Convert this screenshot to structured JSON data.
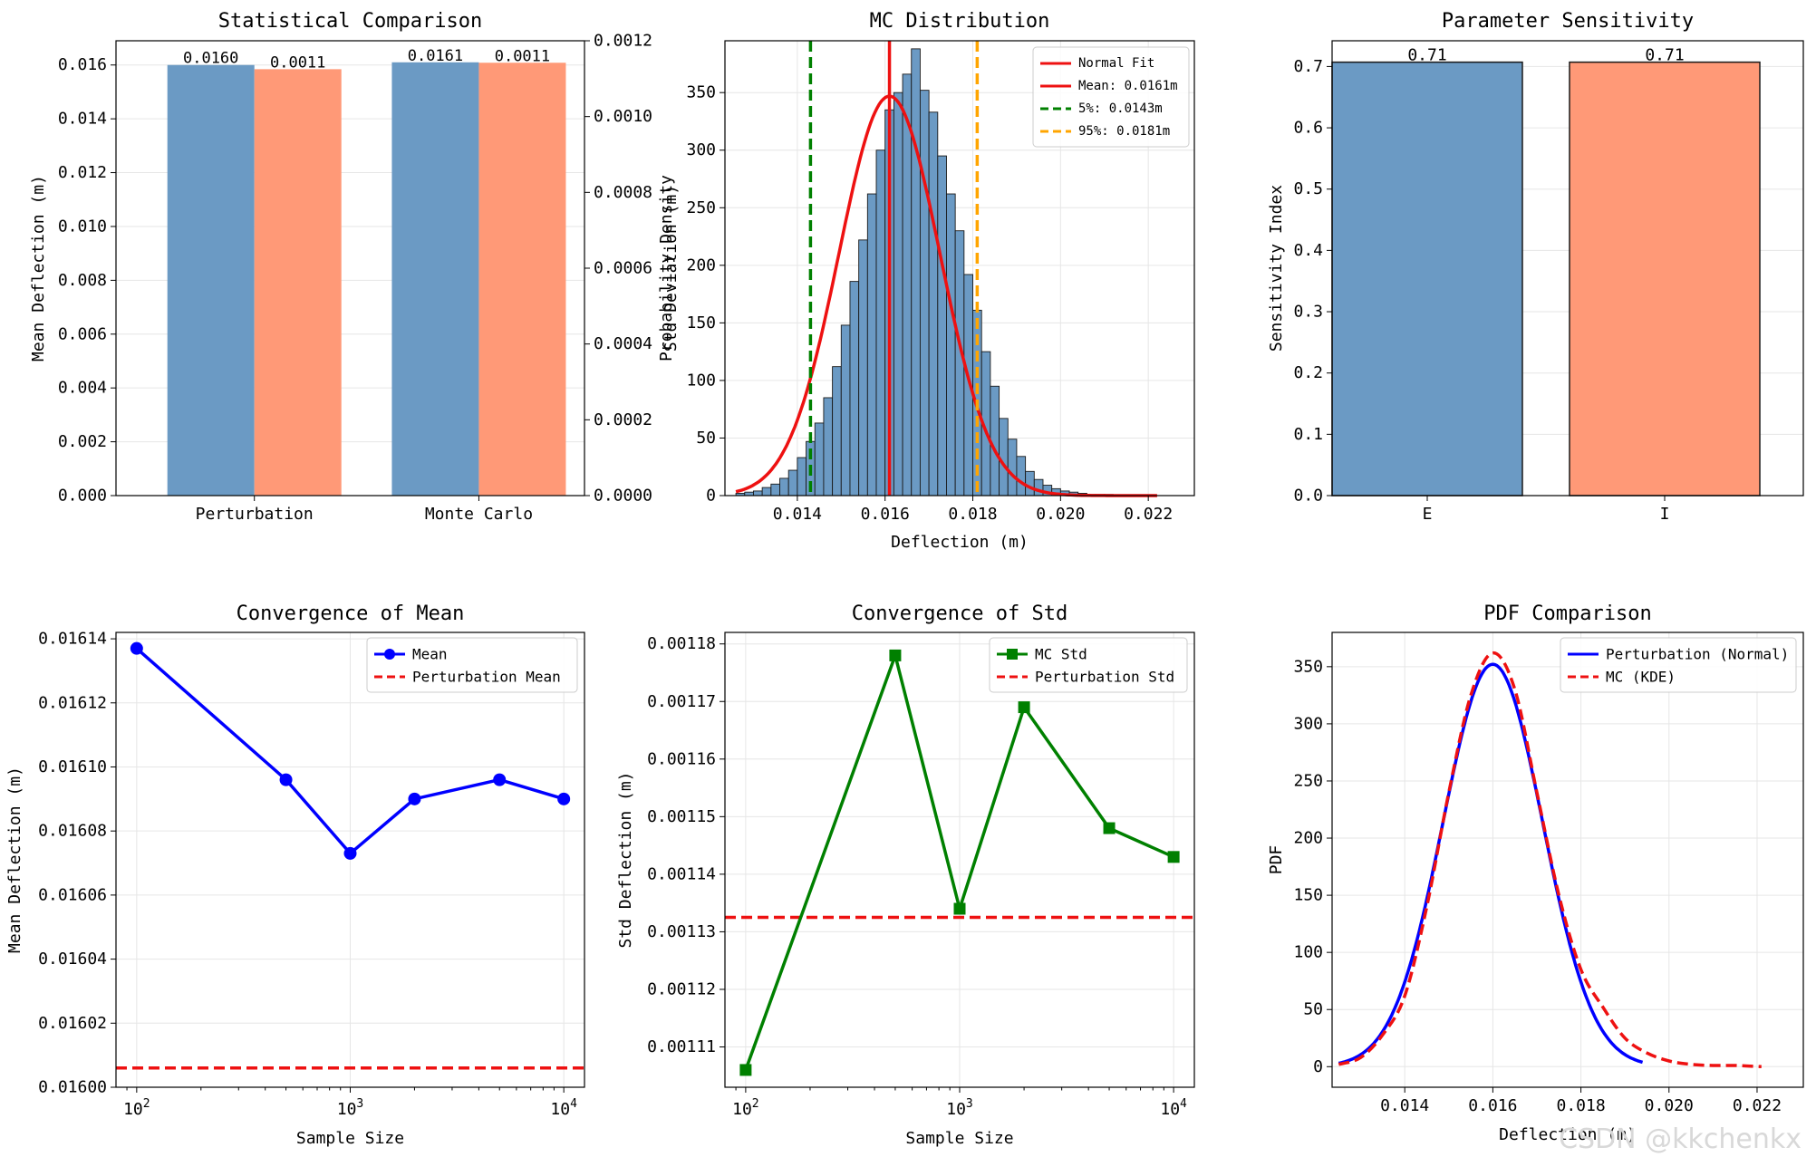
{
  "watermark": "CSDN @kkchenkx",
  "chart_data": [
    {
      "type": "bar",
      "title": "Statistical Comparison",
      "categories": [
        "Perturbation",
        "Monte Carlo"
      ],
      "ylabel": "Mean Deflection (m)",
      "ylabel_color": "#4682B4",
      "ylim": [
        0,
        0.0169
      ],
      "yticks": [
        "0.000",
        "0.002",
        "0.004",
        "0.006",
        "0.008",
        "0.010",
        "0.012",
        "0.014",
        "0.016"
      ],
      "y2label": "Std Deviation (m)",
      "y2label_color": "#FF7F50",
      "y2lim": [
        0,
        0.0012
      ],
      "y2ticks": [
        "0.0000",
        "0.0002",
        "0.0004",
        "0.0006",
        "0.0008",
        "0.0010",
        "0.0012"
      ],
      "series": [
        {
          "axis": "left",
          "color": "#6B9AC4",
          "values": [
            0.016,
            0.0161
          ],
          "labels": [
            "0.0160",
            "0.0161"
          ]
        },
        {
          "axis": "right",
          "color": "#FF9977",
          "values": [
            0.001125,
            0.001142
          ],
          "labels": [
            "0.0011",
            "0.0011"
          ]
        }
      ]
    },
    {
      "type": "bar",
      "subtype": "histogram",
      "title": "MC Distribution",
      "xlabel": "Deflection (m)",
      "ylabel": "Probability Density",
      "xlim": [
        0.01235,
        0.02305
      ],
      "ylim": [
        0,
        395
      ],
      "xticks": [
        "0.014",
        "0.016",
        "0.018",
        "0.020",
        "0.022"
      ],
      "yticks": [
        "0",
        "50",
        "100",
        "150",
        "200",
        "250",
        "300",
        "350"
      ],
      "bar_color": "#6B9AC4",
      "bin_start": 0.0126,
      "bin_width": 0.0002,
      "values": [
        2,
        3,
        4,
        7,
        10,
        15,
        22,
        33,
        47,
        63,
        85,
        112,
        148,
        186,
        222,
        262,
        300,
        335,
        350,
        366,
        388,
        352,
        333,
        295,
        262,
        230,
        192,
        161,
        125,
        95,
        67,
        49,
        34,
        21,
        14,
        9,
        6,
        4,
        3,
        2,
        1,
        1,
        1,
        0,
        0,
        0,
        0,
        0
      ],
      "normal_fit": {
        "label": "Normal Fit",
        "mean": 0.0161,
        "std": 0.00115,
        "color": "#EE1111"
      },
      "lines": [
        {
          "label": "Mean: 0.0161m",
          "x": 0.0161,
          "color": "#EE1111",
          "style": "solid"
        },
        {
          "label": "5%: 0.0143m",
          "x": 0.0143,
          "color": "#008000",
          "style": "dashed"
        },
        {
          "label": "95%: 0.0181m",
          "x": 0.0181,
          "color": "#FFA500",
          "style": "dashed"
        }
      ],
      "legend": "top-right"
    },
    {
      "type": "bar",
      "title": "Parameter Sensitivity",
      "categories": [
        "E",
        "I"
      ],
      "values": [
        0.7071,
        0.7071
      ],
      "labels": [
        "0.71",
        "0.71"
      ],
      "colors": [
        "#6B9AC4",
        "#FF9977"
      ],
      "ylabel": "Sensitivity Index",
      "ylim": [
        0,
        0.742
      ],
      "yticks": [
        "0.0",
        "0.1",
        "0.2",
        "0.3",
        "0.4",
        "0.5",
        "0.6",
        "0.7"
      ]
    },
    {
      "type": "line",
      "title": "Convergence of Mean",
      "xlabel": "Sample Size",
      "ylabel": "Mean Deflection (m)",
      "xscale": "log",
      "xlim": [
        80,
        12500
      ],
      "xticks": [
        100,
        1000,
        10000
      ],
      "ylim": [
        0.016,
        0.016142
      ],
      "yticks": [
        "0.01600",
        "0.01602",
        "0.01604",
        "0.01606",
        "0.01608",
        "0.01610",
        "0.01612",
        "0.01614"
      ],
      "x": [
        100,
        500,
        1000,
        2000,
        5000,
        10000
      ],
      "series": [
        {
          "name": "Mean",
          "values": [
            0.016137,
            0.016096,
            0.016073,
            0.01609,
            0.016096,
            0.01609
          ],
          "color": "#0000FF",
          "marker": "circle"
        }
      ],
      "hline": {
        "name": "Perturbation Mean",
        "y": 0.016006,
        "color": "#EE1111",
        "style": "dashed"
      },
      "legend": "top-right"
    },
    {
      "type": "line",
      "title": "Convergence of Std",
      "xlabel": "Sample Size",
      "ylabel": "Std Deflection (m)",
      "xscale": "log",
      "xlim": [
        80,
        12500
      ],
      "xticks": [
        100,
        1000,
        10000
      ],
      "ylim": [
        0.001103,
        0.001182
      ],
      "yticks": [
        "0.00111",
        "0.00112",
        "0.00113",
        "0.00114",
        "0.00115",
        "0.00116",
        "0.00117",
        "0.00118"
      ],
      "x": [
        100,
        500,
        1000,
        2000,
        5000,
        10000
      ],
      "series": [
        {
          "name": "MC Std",
          "values": [
            0.001106,
            0.001178,
            0.001134,
            0.001169,
            0.001148,
            0.001143
          ],
          "color": "#008000",
          "marker": "square"
        }
      ],
      "hline": {
        "name": "Perturbation Std",
        "y": 0.0011325,
        "color": "#EE1111",
        "style": "dashed"
      },
      "legend": "top-right"
    },
    {
      "type": "line",
      "title": "PDF Comparison",
      "xlabel": "Deflection (m)",
      "ylabel": "PDF",
      "xlim": [
        0.01235,
        0.02305
      ],
      "xticks": [
        "0.014",
        "0.016",
        "0.018",
        "0.020",
        "0.022"
      ],
      "ylim": [
        -18,
        380
      ],
      "yticks": [
        "0",
        "50",
        "100",
        "150",
        "200",
        "250",
        "300",
        "350"
      ],
      "series": [
        {
          "name": "Perturbation (Normal)",
          "color": "#0000FF",
          "style": "solid",
          "mean": 0.016,
          "std": 0.001133,
          "x_range": [
            0.0125,
            0.0194
          ]
        },
        {
          "name": "MC (KDE)",
          "color": "#EE1111",
          "style": "dashed",
          "x_range": [
            0.0125,
            0.0221
          ],
          "x": [
            0.0125,
            0.013,
            0.0135,
            0.014,
            0.0145,
            0.015,
            0.0155,
            0.016,
            0.0165,
            0.017,
            0.0175,
            0.018,
            0.0185,
            0.019,
            0.0195,
            0.02,
            0.0205,
            0.021,
            0.0215,
            0.0221
          ],
          "values": [
            2,
            8,
            28,
            62,
            140,
            240,
            325,
            362,
            330,
            240,
            150,
            85,
            52,
            25,
            12,
            5,
            2,
            1,
            1,
            0
          ]
        }
      ],
      "legend": "top-right"
    }
  ]
}
